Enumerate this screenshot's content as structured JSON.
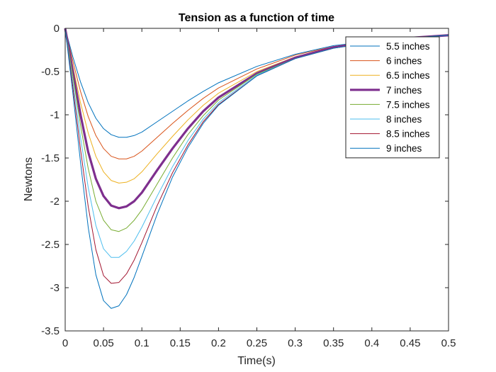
{
  "chart_data": {
    "type": "line",
    "title": "Tension as a function of time",
    "xlabel": "Time(s)",
    "ylabel": "Newtons",
    "xlim": [
      0,
      0.5
    ],
    "ylim": [
      -3.5,
      0
    ],
    "xticks": [
      0,
      0.05,
      0.1,
      0.15,
      0.2,
      0.25,
      0.3,
      0.35,
      0.4,
      0.45,
      0.5
    ],
    "xtick_labels": [
      "0",
      "0.05",
      "0.1",
      "0.15",
      "0.2",
      "0.25",
      "0.3",
      "0.35",
      "0.4",
      "0.45",
      "0.5"
    ],
    "yticks": [
      0,
      -0.5,
      -1,
      -1.5,
      -2,
      -2.5,
      -3,
      -3.5
    ],
    "ytick_labels": [
      "0",
      "-0.5",
      "-1",
      "-1.5",
      "-2",
      "-2.5",
      "-3",
      "-3.5"
    ],
    "grid": false,
    "legend_position": "top-right",
    "x": [
      0,
      0.01,
      0.02,
      0.03,
      0.04,
      0.05,
      0.06,
      0.07,
      0.08,
      0.09,
      0.1,
      0.12,
      0.14,
      0.16,
      0.18,
      0.2,
      0.25,
      0.3,
      0.35,
      0.4,
      0.45,
      0.5
    ],
    "series": [
      {
        "name": "5.5 inches",
        "color": "#0072BD",
        "bold": false,
        "values": [
          0,
          -0.33,
          -0.62,
          -0.86,
          -1.04,
          -1.16,
          -1.23,
          -1.26,
          -1.26,
          -1.24,
          -1.2,
          -1.08,
          -0.96,
          -0.84,
          -0.73,
          -0.63,
          -0.44,
          -0.3,
          -0.2,
          -0.15,
          -0.11,
          -0.08
        ]
      },
      {
        "name": "6 inches",
        "color": "#D95319",
        "bold": false,
        "values": [
          0,
          -0.38,
          -0.73,
          -1.02,
          -1.24,
          -1.39,
          -1.48,
          -1.51,
          -1.51,
          -1.48,
          -1.42,
          -1.26,
          -1.1,
          -0.95,
          -0.81,
          -0.69,
          -0.47,
          -0.31,
          -0.21,
          -0.15,
          -0.11,
          -0.08
        ]
      },
      {
        "name": "6.5 inches",
        "color": "#EDB120",
        "bold": false,
        "values": [
          0,
          -0.44,
          -0.86,
          -1.21,
          -1.48,
          -1.66,
          -1.76,
          -1.79,
          -1.78,
          -1.74,
          -1.66,
          -1.45,
          -1.25,
          -1.06,
          -0.89,
          -0.75,
          -0.5,
          -0.33,
          -0.22,
          -0.16,
          -0.11,
          -0.08
        ]
      },
      {
        "name": "7 inches",
        "color": "#7E2F8E",
        "bold": true,
        "values": [
          0,
          -0.5,
          -1.0,
          -1.43,
          -1.74,
          -1.94,
          -2.05,
          -2.08,
          -2.06,
          -2.0,
          -1.9,
          -1.64,
          -1.39,
          -1.16,
          -0.96,
          -0.8,
          -0.52,
          -0.34,
          -0.22,
          -0.16,
          -0.11,
          -0.08
        ]
      },
      {
        "name": "7.5 inches",
        "color": "#77AC30",
        "bold": false,
        "values": [
          0,
          -0.55,
          -1.12,
          -1.62,
          -2.0,
          -2.22,
          -2.33,
          -2.35,
          -2.31,
          -2.22,
          -2.1,
          -1.8,
          -1.5,
          -1.23,
          -1.01,
          -0.83,
          -0.53,
          -0.35,
          -0.23,
          -0.16,
          -0.11,
          -0.08
        ]
      },
      {
        "name": "8 inches",
        "color": "#4DBEEE",
        "bold": false,
        "values": [
          0,
          -0.62,
          -1.26,
          -1.84,
          -2.28,
          -2.55,
          -2.65,
          -2.65,
          -2.58,
          -2.46,
          -2.3,
          -1.94,
          -1.6,
          -1.3,
          -1.05,
          -0.86,
          -0.54,
          -0.35,
          -0.23,
          -0.16,
          -0.11,
          -0.08
        ]
      },
      {
        "name": "8.5 inches",
        "color": "#A2142F",
        "bold": false,
        "values": [
          0,
          -0.68,
          -1.4,
          -2.06,
          -2.56,
          -2.86,
          -2.95,
          -2.94,
          -2.84,
          -2.68,
          -2.48,
          -2.05,
          -1.67,
          -1.35,
          -1.08,
          -0.88,
          -0.55,
          -0.35,
          -0.23,
          -0.16,
          -0.11,
          -0.08
        ]
      },
      {
        "name": "9 inches",
        "color": "#0072BD",
        "bold": false,
        "values": [
          0,
          -0.75,
          -1.55,
          -2.3,
          -2.85,
          -3.15,
          -3.24,
          -3.21,
          -3.08,
          -2.88,
          -2.64,
          -2.15,
          -1.72,
          -1.38,
          -1.1,
          -0.89,
          -0.55,
          -0.35,
          -0.23,
          -0.16,
          -0.11,
          -0.08
        ]
      }
    ]
  }
}
